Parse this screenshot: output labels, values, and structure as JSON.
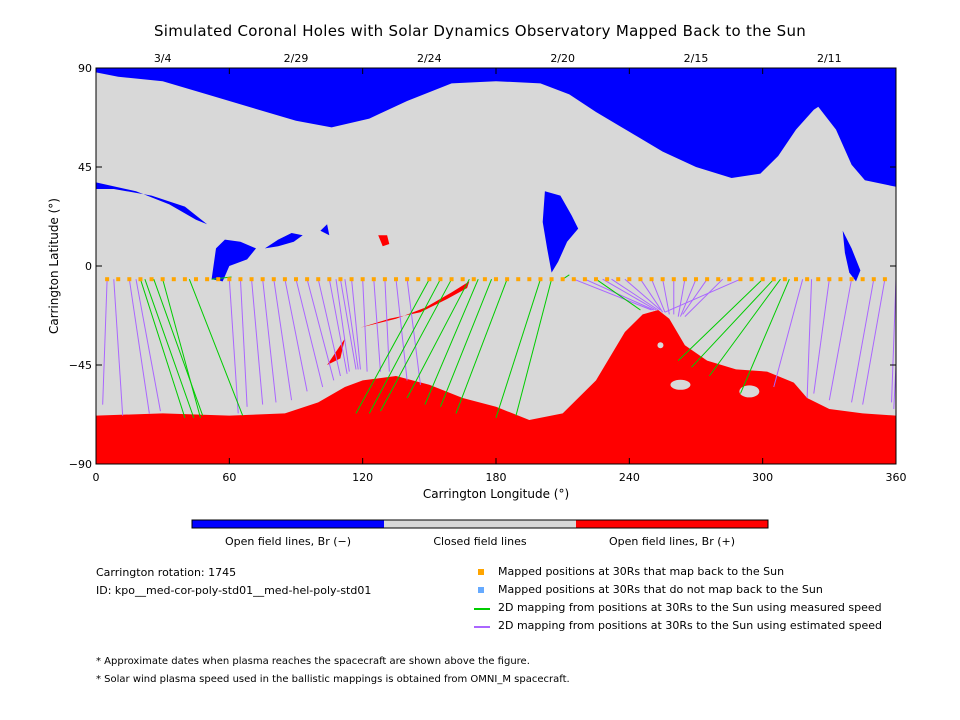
{
  "chart_data": {
    "type": "map",
    "title": "Simulated Coronal Holes with Solar Dynamics Observatory Mapped Back to the Sun",
    "xlabel": "Carrington Longitude (°)",
    "ylabel": "Carrington Latitude (°)",
    "xlim": [
      0,
      360
    ],
    "ylim": [
      -90,
      90
    ],
    "xticks": [
      0,
      60,
      120,
      180,
      240,
      300,
      360
    ],
    "yticks": [
      90,
      45,
      0,
      -45,
      -90
    ],
    "date_ticks": [
      {
        "label": "3/4",
        "lon": 30
      },
      {
        "label": "2/29",
        "lon": 90
      },
      {
        "label": "2/24",
        "lon": 150
      },
      {
        "label": "2/20",
        "lon": 210
      },
      {
        "label": "2/15",
        "lon": 270
      },
      {
        "label": "2/11",
        "lon": 330
      }
    ],
    "colorbar": {
      "colors": [
        "#0000ff",
        "#d8d8d8",
        "#ff0000"
      ],
      "labels": [
        "Open field lines, Br (−)",
        "Closed field lines",
        "Open field lines, Br (+)"
      ]
    },
    "regions": [
      {
        "polarity": "negative",
        "points": [
          [
            0,
            90
          ],
          [
            360,
            90
          ],
          [
            360,
            83
          ],
          [
            341,
            83
          ],
          [
            323,
            71
          ],
          [
            315,
            62
          ],
          [
            307,
            50
          ],
          [
            299,
            42
          ],
          [
            286,
            40
          ],
          [
            270,
            45
          ],
          [
            255,
            52
          ],
          [
            240,
            61
          ],
          [
            225,
            70
          ],
          [
            213,
            78
          ],
          [
            200,
            83
          ],
          [
            180,
            84
          ],
          [
            160,
            83
          ],
          [
            140,
            75
          ],
          [
            123,
            67
          ],
          [
            106,
            63
          ],
          [
            90,
            66
          ],
          [
            70,
            72
          ],
          [
            50,
            78
          ],
          [
            30,
            84
          ],
          [
            10,
            86
          ],
          [
            0,
            88
          ]
        ]
      },
      {
        "polarity": "negative",
        "points": [
          [
            0,
            38
          ],
          [
            18,
            34
          ],
          [
            33,
            28
          ],
          [
            45,
            21
          ],
          [
            50,
            19
          ],
          [
            40,
            27
          ],
          [
            25,
            32
          ],
          [
            8,
            35
          ],
          [
            0,
            35
          ]
        ]
      },
      {
        "polarity": "negative",
        "points": [
          [
            52,
            -6
          ],
          [
            54,
            8
          ],
          [
            58,
            12
          ],
          [
            65,
            11
          ],
          [
            72,
            8
          ],
          [
            68,
            3
          ],
          [
            60,
            0
          ],
          [
            57,
            -7
          ]
        ]
      },
      {
        "polarity": "negative",
        "points": [
          [
            76,
            8
          ],
          [
            82,
            12
          ],
          [
            88,
            15
          ],
          [
            93,
            14
          ],
          [
            89,
            11
          ],
          [
            82,
            9
          ]
        ]
      },
      {
        "polarity": "negative",
        "points": [
          [
            101,
            16
          ],
          [
            104,
            19
          ],
          [
            105,
            14
          ]
        ]
      },
      {
        "polarity": "negative",
        "points": [
          [
            202,
            34
          ],
          [
            209,
            32
          ],
          [
            214,
            23
          ],
          [
            217,
            17
          ],
          [
            212,
            11
          ],
          [
            208,
            2
          ],
          [
            205,
            -3
          ],
          [
            203,
            8
          ],
          [
            201,
            20
          ]
        ]
      },
      {
        "polarity": "negative",
        "points": [
          [
            323,
            75
          ],
          [
            333,
            82
          ],
          [
            350,
            86
          ],
          [
            360,
            86
          ],
          [
            360,
            36
          ],
          [
            346,
            39
          ],
          [
            340,
            46
          ],
          [
            333,
            62
          ]
        ]
      },
      {
        "polarity": "negative",
        "points": [
          [
            336,
            16
          ],
          [
            340,
            8
          ],
          [
            344,
            -2
          ],
          [
            342,
            -7
          ],
          [
            339,
            -3
          ],
          [
            337,
            6
          ]
        ]
      },
      {
        "polarity": "positive",
        "points": [
          [
            0,
            -68
          ],
          [
            30,
            -67
          ],
          [
            60,
            -68
          ],
          [
            85,
            -67
          ],
          [
            100,
            -62
          ],
          [
            112,
            -55
          ],
          [
            120,
            -52
          ],
          [
            135,
            -50
          ],
          [
            150,
            -54
          ],
          [
            165,
            -60
          ],
          [
            180,
            -64
          ],
          [
            195,
            -70
          ],
          [
            210,
            -67
          ],
          [
            225,
            -52
          ],
          [
            238,
            -30
          ],
          [
            246,
            -22
          ],
          [
            253,
            -20
          ],
          [
            258,
            -24
          ],
          [
            265,
            -36
          ],
          [
            275,
            -43
          ],
          [
            288,
            -47
          ],
          [
            302,
            -48
          ],
          [
            314,
            -53
          ],
          [
            320,
            -60
          ],
          [
            330,
            -65
          ],
          [
            345,
            -67
          ],
          [
            360,
            -68
          ],
          [
            360,
            -90
          ],
          [
            0,
            -90
          ]
        ]
      },
      {
        "polarity": "positive",
        "points": [
          [
            104,
            -45
          ],
          [
            108,
            -39
          ],
          [
            112,
            -33
          ],
          [
            110,
            -42
          ]
        ]
      },
      {
        "polarity": "positive",
        "points": [
          [
            119,
            -28
          ],
          [
            132,
            -24
          ],
          [
            146,
            -21
          ],
          [
            158,
            -15
          ],
          [
            167,
            -10
          ],
          [
            168,
            -7
          ],
          [
            160,
            -12
          ],
          [
            148,
            -19
          ],
          [
            135,
            -24
          ]
        ]
      },
      {
        "polarity": "positive",
        "points": [
          [
            127,
            14
          ],
          [
            131,
            14
          ],
          [
            132,
            10
          ],
          [
            129,
            9
          ]
        ]
      }
    ],
    "mapped_points": {
      "lat": -6,
      "lons": [
        5,
        10,
        15,
        20,
        25,
        30,
        35,
        40,
        45,
        50,
        55,
        60,
        65,
        70,
        75,
        80,
        85,
        90,
        95,
        100,
        105,
        110,
        115,
        120,
        125,
        130,
        135,
        140,
        145,
        150,
        155,
        160,
        165,
        170,
        175,
        180,
        185,
        190,
        195,
        200,
        205,
        210,
        215,
        220,
        225,
        230,
        235,
        240,
        245,
        250,
        255,
        260,
        265,
        270,
        275,
        280,
        285,
        290,
        295,
        300,
        305,
        310,
        315,
        320,
        325,
        330,
        335,
        340,
        345,
        350,
        355
      ]
    },
    "unmapped_points": [],
    "measured_lines": [
      [
        20,
        -6,
        40,
        -69
      ],
      [
        22,
        -6,
        44,
        -69
      ],
      [
        26,
        -6,
        48,
        -68
      ],
      [
        30,
        -6,
        47,
        -69
      ],
      [
        42,
        -6,
        66,
        -68
      ],
      [
        52,
        -6,
        61,
        -5
      ],
      [
        150,
        -6,
        117,
        -67
      ],
      [
        155,
        -6,
        123,
        -67
      ],
      [
        160,
        -6,
        128,
        -66
      ],
      [
        168,
        -6,
        140,
        -60
      ],
      [
        172,
        -6,
        148,
        -63
      ],
      [
        178,
        -6,
        155,
        -64
      ],
      [
        185,
        -6,
        162,
        -67
      ],
      [
        200,
        -6,
        180,
        -69
      ],
      [
        205,
        -6,
        189,
        -68
      ],
      [
        210,
        -6,
        213,
        -4
      ],
      [
        225,
        -6,
        245,
        -20
      ],
      [
        300,
        -6,
        262,
        -43
      ],
      [
        305,
        -6,
        268,
        -46
      ],
      [
        308,
        -6,
        276,
        -50
      ],
      [
        312,
        -6,
        290,
        -58
      ]
    ],
    "estimated_lines": [
      [
        5,
        -6,
        3,
        -63
      ],
      [
        8,
        -6,
        12,
        -68
      ],
      [
        15,
        -6,
        24,
        -67
      ],
      [
        18,
        -6,
        29,
        -66
      ],
      [
        60,
        -6,
        64,
        -67
      ],
      [
        65,
        -6,
        68,
        -64
      ],
      [
        70,
        -6,
        75,
        -63
      ],
      [
        75,
        -6,
        81,
        -62
      ],
      [
        80,
        -6,
        88,
        -61
      ],
      [
        85,
        -6,
        95,
        -57
      ],
      [
        90,
        -6,
        102,
        -55
      ],
      [
        95,
        -6,
        107,
        -52
      ],
      [
        100,
        -6,
        110,
        -50
      ],
      [
        105,
        -6,
        113,
        -49
      ],
      [
        108,
        -6,
        114,
        -48
      ],
      [
        110,
        -6,
        117,
        -47
      ],
      [
        112,
        -6,
        118,
        -47
      ],
      [
        115,
        -6,
        119,
        -47
      ],
      [
        120,
        -6,
        122,
        -48
      ],
      [
        125,
        -6,
        128,
        -48
      ],
      [
        130,
        -6,
        132,
        -48
      ],
      [
        135,
        -6,
        140,
        -52
      ],
      [
        140,
        -6,
        146,
        -54
      ],
      [
        215,
        -6,
        250,
        -20
      ],
      [
        220,
        -6,
        251,
        -20
      ],
      [
        228,
        -6,
        252,
        -20
      ],
      [
        232,
        -6,
        253,
        -20
      ],
      [
        238,
        -6,
        254,
        -20
      ],
      [
        245,
        -6,
        255,
        -21
      ],
      [
        250,
        -6,
        256,
        -21
      ],
      [
        255,
        -6,
        258,
        -22
      ],
      [
        260,
        -6,
        260,
        -22
      ],
      [
        265,
        -6,
        262,
        -23
      ],
      [
        270,
        -6,
        263,
        -23
      ],
      [
        275,
        -6,
        264,
        -22
      ],
      [
        282,
        -6,
        265,
        -23
      ],
      [
        290,
        -6,
        256,
        -21
      ],
      [
        318,
        -6,
        305,
        -55
      ],
      [
        322,
        -6,
        320,
        -60
      ],
      [
        330,
        -6,
        323,
        -58
      ],
      [
        340,
        -6,
        330,
        -61
      ],
      [
        350,
        -6,
        340,
        -62
      ],
      [
        355,
        -6,
        345,
        -63
      ],
      [
        360,
        -6,
        358,
        -62
      ],
      [
        362,
        -6,
        359,
        -65
      ]
    ]
  },
  "info": {
    "rotation": "Carrington rotation: 1745",
    "id": "ID: kpo__med-cor-poly-std01__med-hel-poly-std01"
  },
  "legend": [
    {
      "kind": "marker",
      "color": "#ffa500",
      "label": "Mapped positions at 30Rs that map back to the Sun"
    },
    {
      "kind": "marker",
      "color": "#66aaff",
      "label": "Mapped positions at 30Rs that do not map back to the Sun"
    },
    {
      "kind": "line",
      "color": "#00cc00",
      "label": "2D mapping from positions at 30Rs to the Sun using measured speed"
    },
    {
      "kind": "line",
      "color": "#aa66ff",
      "label": "2D mapping from positions at 30Rs to the Sun using estimated speed"
    }
  ],
  "notes": [
    "* Approximate dates when plasma reaches the spacecraft are shown above the figure.",
    "* Solar wind plasma speed used in the ballistic mappings is obtained from OMNI_M spacecraft."
  ],
  "colors": {
    "negative": "#0000ff",
    "closed": "#d8d8d8",
    "positive": "#ff0000"
  }
}
